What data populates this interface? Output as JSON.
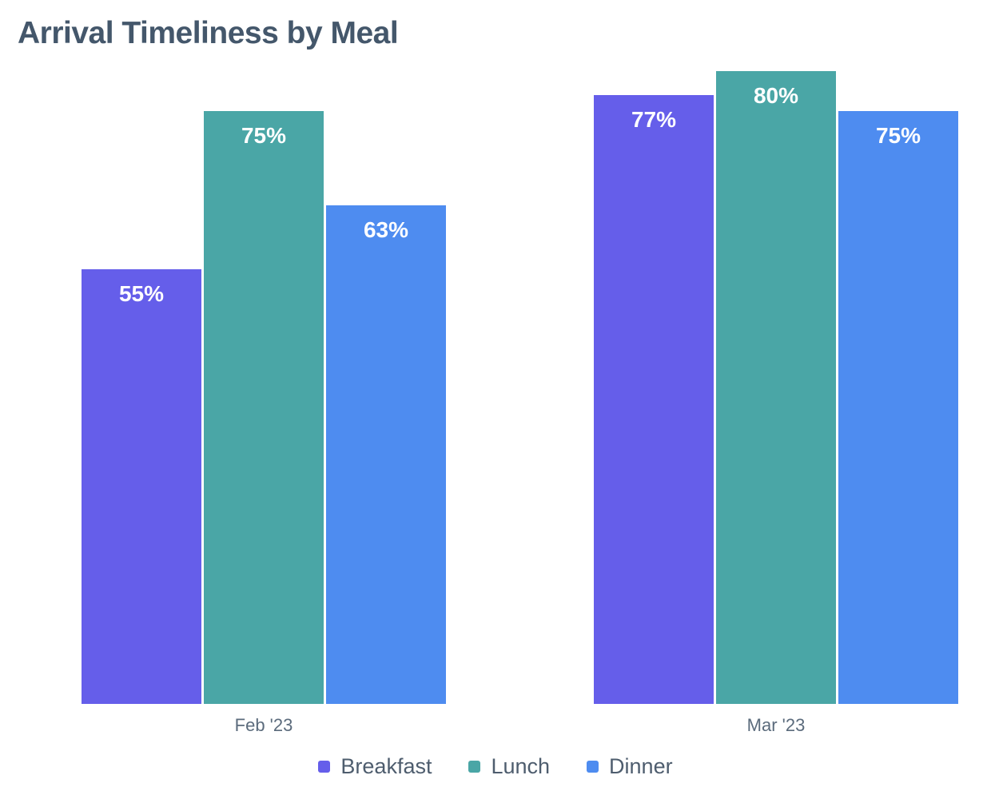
{
  "chart_data": {
    "type": "bar",
    "title": "Arrival Timeliness by Meal",
    "categories": [
      "Feb '23",
      "Mar '23"
    ],
    "series": [
      {
        "name": "Breakfast",
        "color": "#655EEA",
        "values": [
          55,
          77
        ]
      },
      {
        "name": "Lunch",
        "color": "#4AA6A6",
        "values": [
          75,
          80
        ]
      },
      {
        "name": "Dinner",
        "color": "#4E8CF0",
        "values": [
          63,
          75
        ]
      }
    ],
    "value_suffix": "%",
    "ylim": [
      0,
      80
    ],
    "grid": false,
    "axes_hidden": true,
    "value_labels": "inside-top-white-bold",
    "legend_position": "bottom-center"
  },
  "colors": {
    "background": "#FFFFFF",
    "title_text": "#44576B",
    "axis_text": "#5B6B7C",
    "legend_text": "#4E5D6E",
    "value_label_text": "#FFFFFF"
  }
}
